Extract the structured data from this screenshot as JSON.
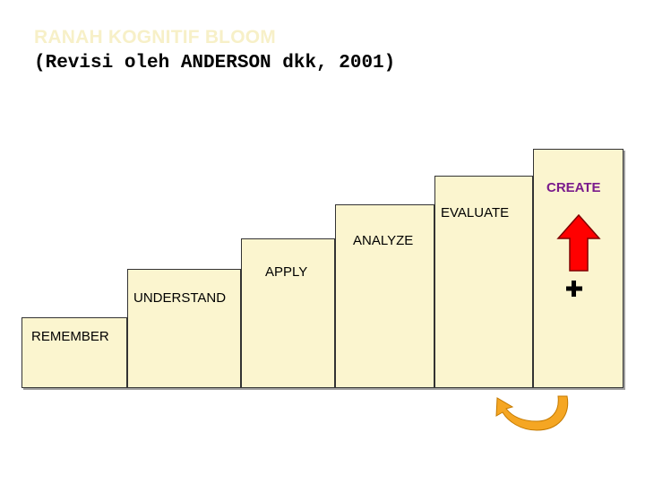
{
  "title": "RANAH KOGNITIF BLOOM",
  "subtitle": "(Revisi oleh ANDERSON dkk, 2001)",
  "steps": [
    {
      "label": "REMEMBER"
    },
    {
      "label": "UNDERSTAND"
    },
    {
      "label": "APPLY"
    },
    {
      "label": "ANALYZE"
    },
    {
      "label": "EVALUATE"
    },
    {
      "label": "CREATE"
    }
  ],
  "colors": {
    "step_fill": "#fbf5cf",
    "step_border": "#333333",
    "title": "#f7f0c8",
    "create_label": "#7a1b8c",
    "up_arrow": "#ff0000",
    "curved_arrow": "#f5a623"
  },
  "icons": {
    "up_arrow": "up-arrow-icon",
    "plus": "plus-icon",
    "curved_arrow": "curved-arrow-icon"
  }
}
